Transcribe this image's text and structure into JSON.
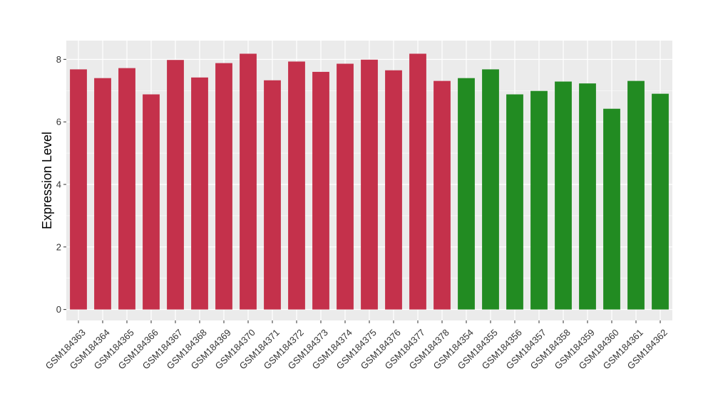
{
  "chart_data": {
    "type": "bar",
    "title": "",
    "xlabel": "",
    "ylabel": "Expression Level",
    "ylim": [
      -0.35,
      8.6
    ],
    "yticks": [
      0,
      2,
      4,
      6,
      8
    ],
    "grid": true,
    "colors": {
      "group_a": "#c4314b",
      "group_b": "#228b22",
      "panel": "#ebebeb",
      "gridline": "#ffffff"
    },
    "categories": [
      "GSM184363",
      "GSM184364",
      "GSM184365",
      "GSM184366",
      "GSM184367",
      "GSM184368",
      "GSM184369",
      "GSM184370",
      "GSM184371",
      "GSM184372",
      "GSM184373",
      "GSM184374",
      "GSM184375",
      "GSM184376",
      "GSM184377",
      "GSM184378",
      "GSM184354",
      "GSM184355",
      "GSM184356",
      "GSM184357",
      "GSM184358",
      "GSM184359",
      "GSM184360",
      "GSM184361",
      "GSM184362"
    ],
    "values": [
      7.68,
      7.4,
      7.72,
      6.88,
      7.98,
      7.42,
      7.88,
      8.18,
      7.33,
      7.93,
      7.6,
      7.86,
      7.99,
      7.65,
      8.18,
      7.31,
      7.4,
      7.68,
      6.88,
      6.99,
      7.29,
      7.23,
      6.42,
      7.31,
      6.9
    ],
    "bar_groups": [
      "a",
      "a",
      "a",
      "a",
      "a",
      "a",
      "a",
      "a",
      "a",
      "a",
      "a",
      "a",
      "a",
      "a",
      "a",
      "a",
      "b",
      "b",
      "b",
      "b",
      "b",
      "b",
      "b",
      "b",
      "b"
    ]
  }
}
